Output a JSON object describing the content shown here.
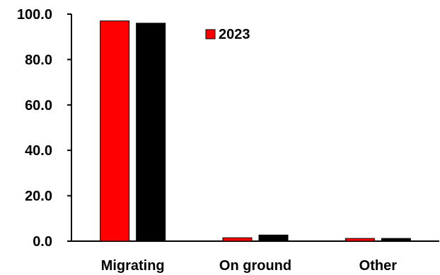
{
  "chart_data": {
    "type": "bar",
    "title": "",
    "xlabel": "",
    "ylabel": "",
    "categories": [
      "Migrating",
      "On ground",
      "Other"
    ],
    "ylim": [
      0,
      100
    ],
    "yticks": [
      0,
      20,
      40,
      60,
      80,
      100
    ],
    "ytick_labels": [
      "0.0",
      "20.0",
      "40.0",
      "60.0",
      "80.0",
      "100.0"
    ],
    "grid": false,
    "legend": {
      "position": "top-center",
      "entries": [
        "2023"
      ]
    },
    "series": [
      {
        "name": "2023",
        "color": "#ff0000",
        "values": [
          97.0,
          1.5,
          1.2
        ]
      },
      {
        "color": "#000000",
        "values": [
          96.0,
          2.7,
          1.2
        ]
      }
    ]
  }
}
